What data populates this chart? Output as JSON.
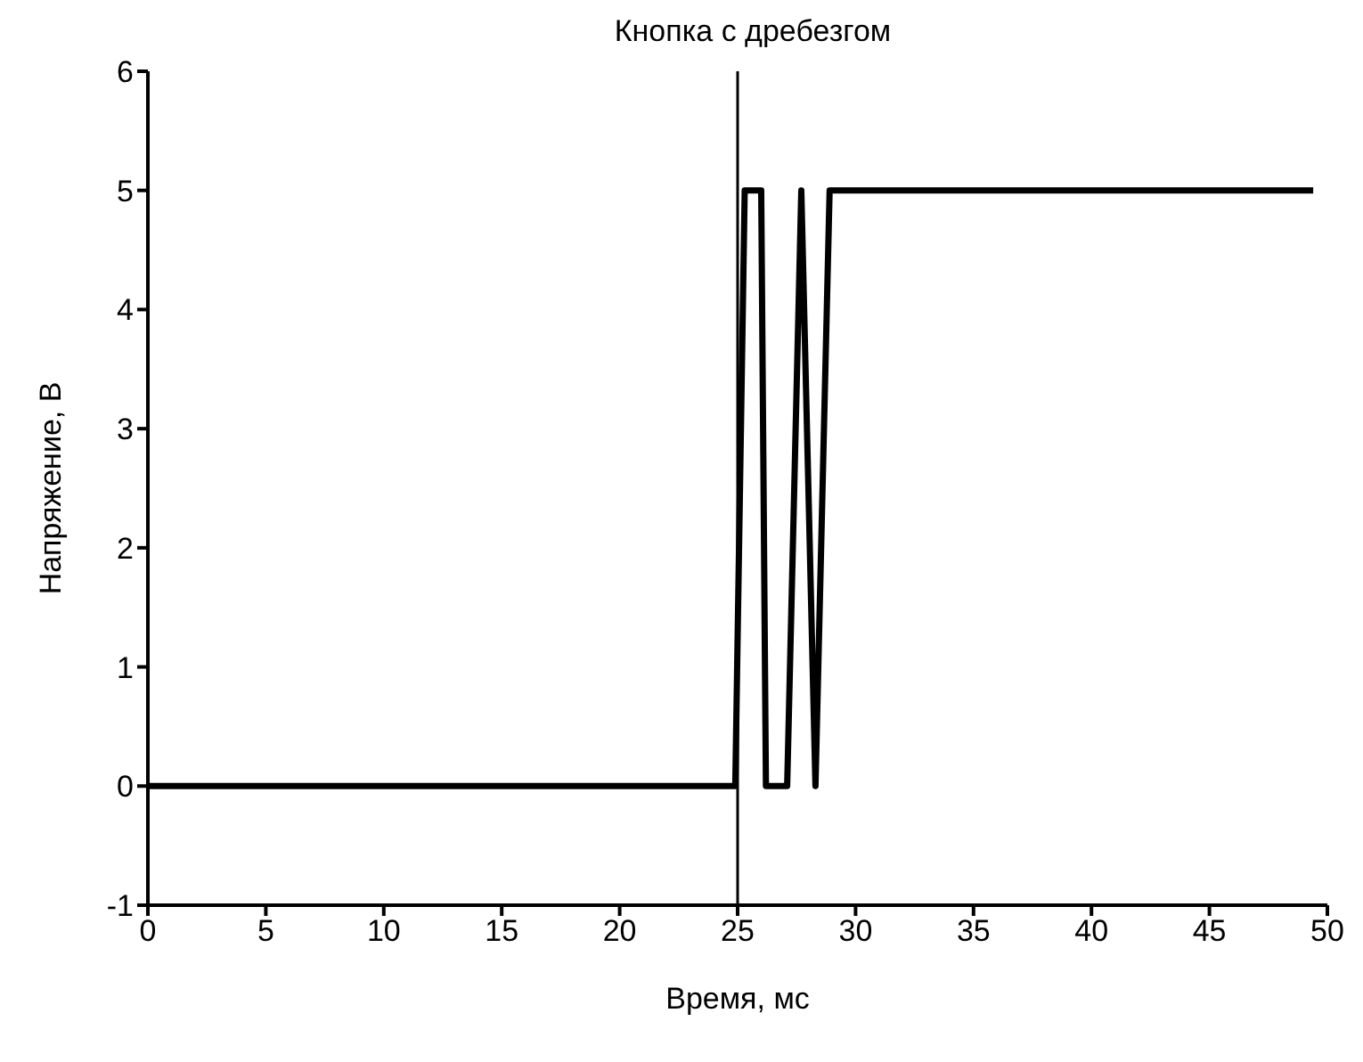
{
  "chart_data": {
    "type": "line",
    "title": "Кнопка с дребезгом",
    "xlabel": "Время, мс",
    "ylabel": "Напряжение, В",
    "x": [
      0,
      24.9,
      25.3,
      26,
      26.2,
      27.1,
      27.7,
      28.3,
      28.9,
      49.4
    ],
    "series": [
      {
        "color": "#000000",
        "values": [
          0,
          0,
          5,
          5,
          0,
          0,
          5,
          0,
          5,
          5
        ]
      }
    ],
    "xlim": [
      0,
      50
    ],
    "xticks": [
      0,
      5,
      10,
      15,
      20,
      25,
      30,
      35,
      40,
      45,
      50
    ],
    "ylim": [
      -1,
      6
    ],
    "yticks": [
      -1,
      0,
      1,
      2,
      3,
      4,
      5,
      6
    ],
    "ref_lines": [
      {
        "axis": "x",
        "value": 25,
        "color": "#000000"
      }
    ],
    "grid": false,
    "legend": false,
    "marker": "none",
    "line_style": "solid"
  }
}
